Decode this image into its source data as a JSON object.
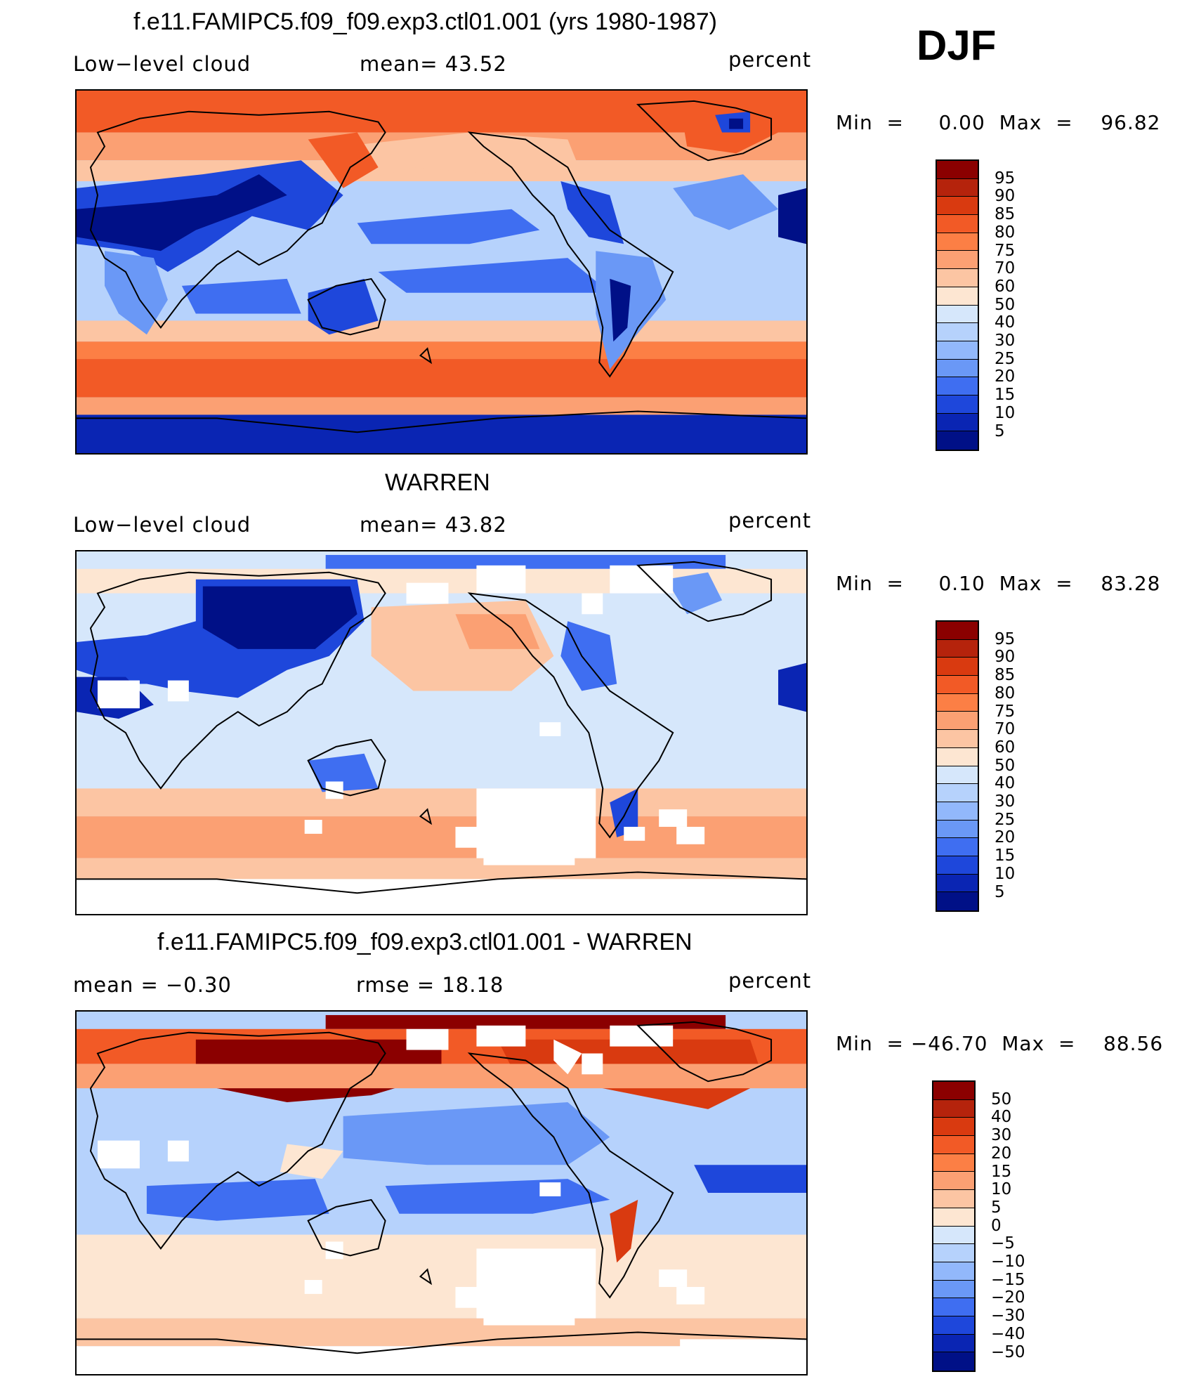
{
  "season": "DJF",
  "panels": [
    {
      "title": "f.e11.FAMIPC5.f09_f09.exp3.ctl01.001 (yrs 1980-1987)",
      "left_label": "Low−level cloud",
      "center_label": "mean=   43.52",
      "right_label": "percent",
      "minmax": "Min  =     0.00  Max  =    96.82",
      "colorbar": {
        "colors": [
          "#8b0000",
          "#b5230c",
          "#d93a10",
          "#f25a26",
          "#fc7f45",
          "#fba073",
          "#fcc5a3",
          "#fde6d2",
          "#d6e7fb",
          "#b6d2fc",
          "#92b8fb",
          "#6a98f6",
          "#3f6ef1",
          "#1e47db",
          "#0a25b3",
          "#001087"
        ],
        "labels": [
          "95",
          "90",
          "85",
          "80",
          "75",
          "70",
          "60",
          "50",
          "40",
          "30",
          "25",
          "20",
          "15",
          "10",
          "5"
        ]
      }
    },
    {
      "title": "WARREN",
      "left_label": "Low−level cloud",
      "center_label": "mean=   43.82",
      "right_label": "percent",
      "minmax": "Min  =     0.10  Max  =    83.28",
      "colorbar": {
        "colors": [
          "#8b0000",
          "#b5230c",
          "#d93a10",
          "#f25a26",
          "#fc7f45",
          "#fba073",
          "#fcc5a3",
          "#fde6d2",
          "#d6e7fb",
          "#b6d2fc",
          "#92b8fb",
          "#6a98f6",
          "#3f6ef1",
          "#1e47db",
          "#0a25b3",
          "#001087"
        ],
        "labels": [
          "95",
          "90",
          "85",
          "80",
          "75",
          "70",
          "60",
          "50",
          "40",
          "30",
          "25",
          "20",
          "15",
          "10",
          "5"
        ]
      }
    },
    {
      "title": "f.e11.FAMIPC5.f09_f09.exp3.ctl01.001 - WARREN",
      "left_label": "mean  =    −0.30",
      "center_label": "rmse  =    18.18",
      "right_label": "percent",
      "minmax": "Min  = −46.70  Max  =    88.56",
      "colorbar": {
        "colors": [
          "#8b0000",
          "#b5230c",
          "#d93a10",
          "#f25a26",
          "#fc7f45",
          "#fba073",
          "#fcc5a3",
          "#fde6d2",
          "#d6e7fb",
          "#b6d2fc",
          "#92b8fb",
          "#6a98f6",
          "#3f6ef1",
          "#1e47db",
          "#0a25b3",
          "#001087"
        ],
        "labels": [
          "50",
          "40",
          "30",
          "20",
          "15",
          "10",
          "5",
          "0",
          "−5",
          "−10",
          "−15",
          "−20",
          "−30",
          "−40",
          "−50"
        ]
      }
    }
  ]
}
